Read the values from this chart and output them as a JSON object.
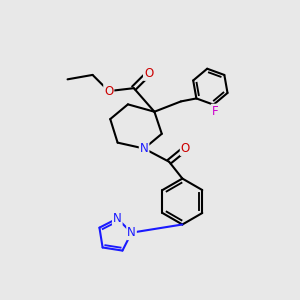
{
  "bg_color": "#e8e8e8",
  "bond_color": "#000000",
  "bond_width": 1.5,
  "atom_colors": {
    "N": "#1a1aff",
    "O": "#cc0000",
    "F": "#cc00cc"
  },
  "font_size": 8.5
}
